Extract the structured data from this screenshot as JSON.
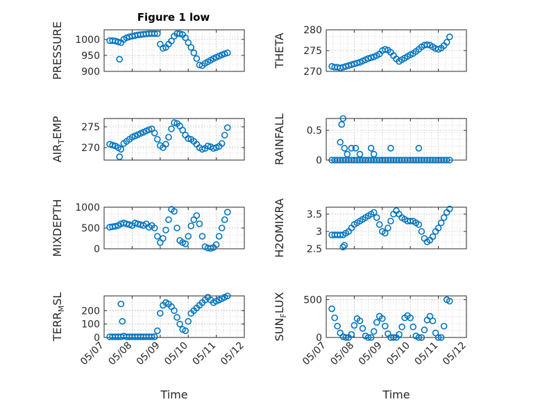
{
  "figure": {
    "title": "Figure 1 low",
    "marker_color": "#0072BD",
    "grid": true,
    "x_tick_labels": [
      "05/07",
      "05/08",
      "05/09",
      "05/10",
      "05/11",
      "05/12"
    ]
  },
  "chart_data": [
    {
      "type": "scatter",
      "ylabel": "PRESSURE",
      "xlabel": "",
      "xlim": [
        0,
        5
      ],
      "ylim": [
        900,
        1030
      ],
      "yticks": [
        900,
        950,
        1000
      ],
      "x_axis_unit": "days since 05/07",
      "series": [
        {
          "x": [
            0.2,
            0.3,
            0.4,
            0.5,
            0.6,
            0.7,
            0.8,
            0.9,
            1.0,
            1.1,
            1.2,
            1.3,
            1.4,
            1.5,
            1.6,
            1.7,
            1.8,
            1.9,
            2.0,
            2.1,
            2.2,
            2.3,
            2.4,
            2.5,
            2.6,
            2.7,
            2.8,
            2.9,
            3.0,
            3.1,
            3.2,
            3.3,
            3.4,
            3.5,
            3.6,
            3.7,
            3.8,
            3.9,
            4.0,
            4.1,
            4.2,
            4.3,
            4.4,
            0.55
          ],
          "y": [
            996,
            996,
            995,
            992,
            990,
            1000,
            1005,
            1008,
            1010,
            1012,
            1014,
            1015,
            1016,
            1017,
            1018,
            1018,
            1018,
            1018,
            985,
            972,
            975,
            985,
            995,
            1010,
            1018,
            1018,
            1015,
            1005,
            990,
            975,
            958,
            940,
            920,
            918,
            925,
            930,
            935,
            940,
            944,
            948,
            952,
            955,
            958,
            938
          ]
        }
      ]
    },
    {
      "type": "scatter",
      "ylabel": "THETA",
      "xlabel": "",
      "xlim": [
        0,
        5
      ],
      "ylim": [
        270,
        280
      ],
      "yticks": [
        270,
        275,
        280
      ],
      "series": [
        {
          "x": [
            0.2,
            0.3,
            0.4,
            0.5,
            0.6,
            0.7,
            0.8,
            0.9,
            1.0,
            1.1,
            1.2,
            1.3,
            1.4,
            1.5,
            1.6,
            1.7,
            1.8,
            1.9,
            2.0,
            2.1,
            2.2,
            2.3,
            2.4,
            2.5,
            2.6,
            2.7,
            2.8,
            2.9,
            3.0,
            3.1,
            3.2,
            3.3,
            3.4,
            3.5,
            3.6,
            3.7,
            3.8,
            3.9,
            4.0,
            4.1,
            4.2,
            4.3,
            4.4
          ],
          "y": [
            271.2,
            271.0,
            271.0,
            270.8,
            271.0,
            271.2,
            271.4,
            271.6,
            271.8,
            272.0,
            272.2,
            272.5,
            272.8,
            273.1,
            273.3,
            273.5,
            273.8,
            274.2,
            275.0,
            275.3,
            275.1,
            274.6,
            273.8,
            273.0,
            272.4,
            272.8,
            273.2,
            273.6,
            274.0,
            274.3,
            274.8,
            275.3,
            275.9,
            276.3,
            276.4,
            276.3,
            275.9,
            275.5,
            275.3,
            275.6,
            276.2,
            277.0,
            278.3
          ]
        }
      ]
    },
    {
      "type": "scatter",
      "ylabel": "AIR_TEMP",
      "xlabel": "",
      "xlim": [
        0,
        5
      ],
      "ylim": [
        267,
        277
      ],
      "yticks": [
        270,
        275
      ],
      "series": [
        {
          "x": [
            0.2,
            0.3,
            0.4,
            0.5,
            0.6,
            0.7,
            0.8,
            0.9,
            1.0,
            1.1,
            1.2,
            1.3,
            1.4,
            1.5,
            1.6,
            1.7,
            1.8,
            1.9,
            2.0,
            2.1,
            2.2,
            2.3,
            2.4,
            2.5,
            2.6,
            2.7,
            2.8,
            2.9,
            3.0,
            3.1,
            3.2,
            3.3,
            3.4,
            3.5,
            3.6,
            3.7,
            3.8,
            3.9,
            4.0,
            4.1,
            4.2,
            4.3,
            4.4,
            0.55
          ],
          "y": [
            270.8,
            270.6,
            270.4,
            270.0,
            269.6,
            271.0,
            271.5,
            272.0,
            272.5,
            272.8,
            273.1,
            273.4,
            273.7,
            274.0,
            274.3,
            274.5,
            273.5,
            272.0,
            270.5,
            270.0,
            270.8,
            272.5,
            274.5,
            276.0,
            275.8,
            275.2,
            274.2,
            273.0,
            272.2,
            272.0,
            271.5,
            270.8,
            270.0,
            269.6,
            269.8,
            270.4,
            270.2,
            269.8,
            270.0,
            270.3,
            271.0,
            273.0,
            274.8,
            267.8
          ]
        }
      ]
    },
    {
      "type": "scatter",
      "ylabel": "RAINFALL",
      "xlabel": "",
      "xlim": [
        0,
        5
      ],
      "ylim": [
        0,
        0.7
      ],
      "yticks": [
        0,
        0.5
      ],
      "series": [
        {
          "x": [
            0.2,
            0.3,
            0.4,
            0.5,
            0.6,
            0.7,
            0.8,
            0.9,
            1.0,
            1.1,
            1.2,
            1.3,
            1.4,
            1.5,
            1.6,
            1.7,
            1.8,
            1.9,
            2.0,
            2.1,
            2.2,
            2.3,
            2.4,
            2.5,
            2.6,
            2.7,
            2.8,
            2.9,
            3.0,
            3.1,
            3.2,
            3.3,
            3.4,
            3.5,
            3.6,
            3.7,
            3.8,
            3.9,
            4.0,
            4.1,
            4.2,
            4.3,
            4.4,
            0.5,
            0.55,
            0.6,
            0.65,
            0.75,
            0.9,
            1.05,
            1.2,
            1.6,
            1.7,
            2.3,
            3.3
          ],
          "y": [
            0,
            0,
            0,
            0,
            0,
            0,
            0,
            0,
            0,
            0,
            0,
            0,
            0,
            0,
            0,
            0,
            0,
            0,
            0,
            0,
            0,
            0,
            0,
            0,
            0,
            0,
            0,
            0,
            0,
            0,
            0,
            0,
            0,
            0,
            0,
            0,
            0,
            0,
            0,
            0,
            0,
            0,
            0,
            0.3,
            0.6,
            0.7,
            0.2,
            0.1,
            0.2,
            0.2,
            0.1,
            0.2,
            0.1,
            0.2,
            0.2
          ]
        }
      ]
    },
    {
      "type": "scatter",
      "ylabel": "MIXDEPTH",
      "xlabel": "",
      "xlim": [
        0,
        5
      ],
      "ylim": [
        0,
        1000
      ],
      "yticks": [
        0,
        500,
        1000
      ],
      "series": [
        {
          "x": [
            0.2,
            0.3,
            0.4,
            0.5,
            0.6,
            0.7,
            0.8,
            0.9,
            1.0,
            1.1,
            1.2,
            1.3,
            1.4,
            1.5,
            1.6,
            1.7,
            1.8,
            1.9,
            2.0,
            2.1,
            2.2,
            2.3,
            2.4,
            2.5,
            2.6,
            2.7,
            2.8,
            2.9,
            3.0,
            3.1,
            3.2,
            3.3,
            3.4,
            3.5,
            3.6,
            3.7,
            3.8,
            3.9,
            4.0,
            4.1,
            4.2,
            4.3,
            4.4
          ],
          "y": [
            520,
            530,
            540,
            560,
            600,
            620,
            600,
            580,
            560,
            620,
            600,
            580,
            560,
            600,
            520,
            560,
            500,
            300,
            150,
            250,
            450,
            700,
            950,
            900,
            500,
            200,
            150,
            120,
            300,
            550,
            700,
            800,
            600,
            300,
            50,
            20,
            10,
            30,
            100,
            300,
            500,
            700,
            880
          ]
        }
      ]
    },
    {
      "type": "scatter",
      "ylabel": "H2OMIXRA",
      "xlabel": "",
      "xlim": [
        0,
        5
      ],
      "ylim": [
        2.5,
        3.7
      ],
      "yticks": [
        2.5,
        3,
        3.5
      ],
      "series": [
        {
          "x": [
            0.2,
            0.3,
            0.4,
            0.5,
            0.6,
            0.7,
            0.8,
            0.9,
            1.0,
            1.1,
            1.2,
            1.3,
            1.4,
            1.5,
            1.6,
            1.7,
            1.8,
            1.9,
            2.0,
            2.1,
            2.2,
            2.3,
            2.4,
            2.5,
            2.6,
            2.7,
            2.8,
            2.9,
            3.0,
            3.1,
            3.2,
            3.3,
            3.4,
            3.5,
            3.6,
            3.7,
            3.8,
            3.9,
            4.0,
            4.1,
            4.2,
            4.3,
            4.4,
            0.6,
            0.65
          ],
          "y": [
            2.9,
            2.9,
            2.9,
            2.9,
            2.9,
            2.95,
            3.0,
            3.1,
            3.2,
            3.25,
            3.3,
            3.35,
            3.4,
            3.45,
            3.5,
            3.55,
            3.4,
            3.2,
            3.0,
            2.95,
            3.1,
            3.3,
            3.5,
            3.6,
            3.5,
            3.4,
            3.35,
            3.3,
            3.3,
            3.3,
            3.25,
            3.2,
            3.0,
            2.8,
            2.7,
            2.75,
            2.85,
            3.0,
            3.1,
            3.25,
            3.4,
            3.55,
            3.65,
            2.55,
            2.6
          ]
        }
      ]
    },
    {
      "type": "scatter",
      "ylabel": "TERR_MSL",
      "xlabel": "Time",
      "xlim": [
        0,
        5
      ],
      "ylim": [
        0,
        310
      ],
      "yticks": [
        0,
        100,
        200
      ],
      "series": [
        {
          "x": [
            0.2,
            0.3,
            0.4,
            0.5,
            0.6,
            0.7,
            0.8,
            0.9,
            1.0,
            1.1,
            1.2,
            1.3,
            1.4,
            1.5,
            1.6,
            1.7,
            1.8,
            1.9,
            2.0,
            2.1,
            2.2,
            2.3,
            2.4,
            2.5,
            2.6,
            2.7,
            2.8,
            2.9,
            3.0,
            3.1,
            3.2,
            3.3,
            3.4,
            3.5,
            3.6,
            3.7,
            3.8,
            3.9,
            4.0,
            4.1,
            4.2,
            4.3,
            4.4,
            0.6,
            0.65
          ],
          "y": [
            5,
            5,
            5,
            5,
            5,
            10,
            5,
            5,
            5,
            5,
            5,
            5,
            5,
            5,
            5,
            5,
            5,
            50,
            180,
            240,
            260,
            250,
            230,
            200,
            150,
            100,
            60,
            50,
            120,
            180,
            200,
            220,
            240,
            260,
            280,
            300,
            280,
            260,
            270,
            280,
            290,
            300,
            310,
            250,
            120
          ]
        }
      ]
    },
    {
      "type": "scatter",
      "ylabel": "SUN_FLUX",
      "xlabel": "Time",
      "xlim": [
        0,
        5
      ],
      "ylim": [
        0,
        550
      ],
      "yticks": [
        0,
        500
      ],
      "series": [
        {
          "x": [
            0.2,
            0.3,
            0.4,
            0.5,
            0.6,
            0.7,
            0.8,
            0.9,
            1.0,
            1.1,
            1.2,
            1.3,
            1.4,
            1.5,
            1.6,
            1.7,
            1.8,
            1.9,
            2.0,
            2.1,
            2.2,
            2.3,
            2.4,
            2.5,
            2.6,
            2.7,
            2.8,
            2.9,
            3.0,
            3.1,
            3.2,
            3.3,
            3.4,
            3.5,
            3.6,
            3.7,
            3.8,
            3.9,
            4.0,
            4.1,
            4.2,
            4.3,
            4.4
          ],
          "y": [
            380,
            260,
            150,
            60,
            10,
            0,
            0,
            40,
            160,
            250,
            220,
            120,
            20,
            0,
            0,
            80,
            200,
            280,
            250,
            150,
            50,
            0,
            0,
            0,
            40,
            140,
            260,
            290,
            260,
            140,
            20,
            0,
            0,
            100,
            230,
            280,
            220,
            60,
            0,
            0,
            150,
            500,
            480
          ]
        }
      ]
    }
  ]
}
